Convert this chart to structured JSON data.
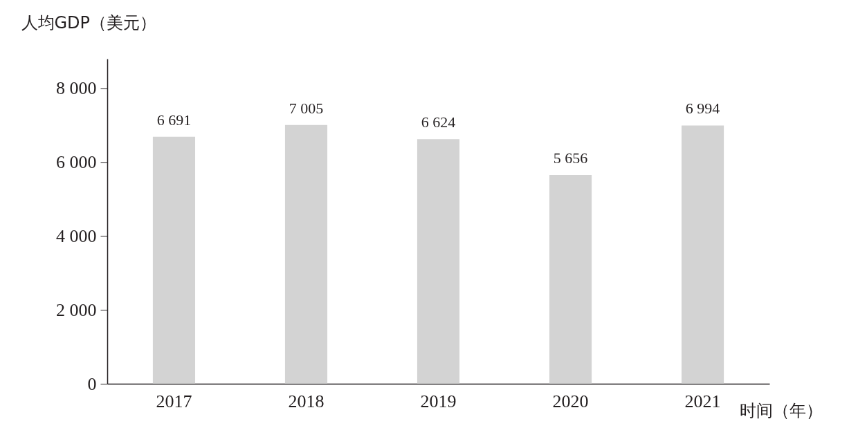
{
  "chart_data": {
    "type": "bar",
    "xlabel": "时间（年）",
    "ylabel": "人均GDP（美元）",
    "categories": [
      "2017",
      "2018",
      "2019",
      "2020",
      "2021"
    ],
    "values": [
      6691,
      7005,
      6624,
      5656,
      6994
    ],
    "value_labels": [
      "6 691",
      "7 005",
      "6 624",
      "5 656",
      "6 994"
    ],
    "color": "#d3d3d3",
    "ylim": [
      0,
      8800
    ],
    "yticks": [
      0,
      {
        "value": 2000,
        "label": "2 000"
      },
      {
        "value": 4000,
        "label": "4 000"
      },
      {
        "value": 6000,
        "label": "6 000"
      },
      {
        "value": 8000,
        "label": "8 000"
      }
    ],
    "grid": false
  }
}
